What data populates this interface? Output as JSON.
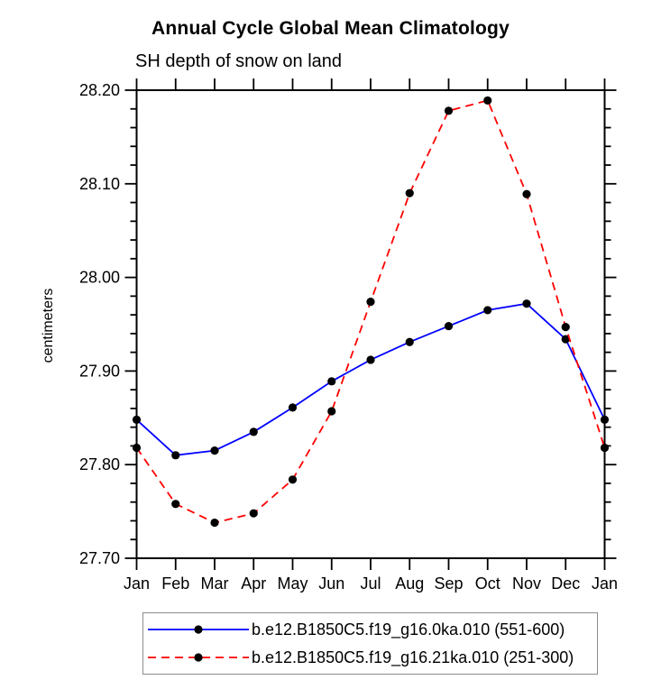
{
  "figure": {
    "title": "Annual Cycle Global Mean Climatology",
    "subtitle": "SH depth of snow on land"
  },
  "chart_data": {
    "type": "line",
    "title": "Annual Cycle Global Mean Climatology",
    "subtitle": "SH depth of snow on land",
    "xlabel": "",
    "ylabel": "centimeters",
    "categories": [
      "Jan",
      "Feb",
      "Mar",
      "Apr",
      "May",
      "Jun",
      "Jul",
      "Aug",
      "Sep",
      "Oct",
      "Nov",
      "Dec",
      "Jan"
    ],
    "ylim": [
      27.7,
      28.2
    ],
    "y_major_ticks": [
      27.7,
      27.8,
      27.9,
      28.0,
      28.1,
      28.2
    ],
    "y_tick_decimals": 2,
    "y_minor_step": 0.02,
    "grid": false,
    "legend_position": "bottom",
    "axis_color": "#000000",
    "marker_radius": 4.6,
    "series": [
      {
        "name": "b.e12.B1850C5.f19_g16.0ka.010 (551-600)",
        "color": "#0000ff",
        "line_style": "solid",
        "marker": "circle",
        "marker_color": "#000000",
        "values": [
          27.848,
          27.81,
          27.815,
          27.835,
          27.861,
          27.889,
          27.912,
          27.931,
          27.948,
          27.965,
          27.972,
          27.934,
          27.848
        ]
      },
      {
        "name": "b.e12.B1850C5.f19_g16.21ka.010 (251-300)",
        "color": "#ff0000",
        "line_style": "dashed",
        "marker": "circle",
        "marker_color": "#000000",
        "values": [
          27.818,
          27.758,
          27.738,
          27.748,
          27.784,
          27.857,
          27.974,
          28.09,
          28.178,
          28.189,
          28.089,
          27.947,
          27.818
        ]
      }
    ]
  }
}
